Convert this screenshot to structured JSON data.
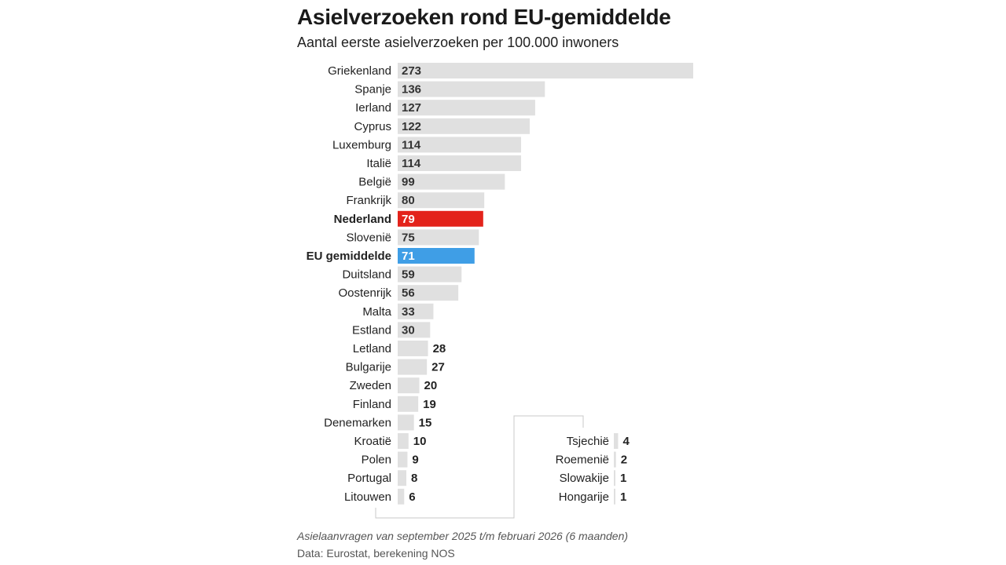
{
  "title": "Asielverzoeken rond EU-gemiddelde",
  "subtitle": "Aantal eerste asielverzoeken per 100.000 inwoners",
  "footnote": "Asielaanvragen van september 2025 t/m februari 2026 (6 maanden)",
  "source": "Data: Eurostat, berekening NOS",
  "colors": {
    "bar": "#e0e0e0",
    "highlight_netherlands": "#e3231b",
    "highlight_eu": "#3f9ee6",
    "label_inside": "#333333",
    "label_inside_highlight": "#ffffff",
    "connector": "#c8c8c8"
  },
  "chart_data": {
    "type": "bar",
    "orientation": "horizontal",
    "title": "Asielverzoeken rond EU-gemiddelde",
    "subtitle": "Aantal eerste asielverzoeken per 100.000 inwoners",
    "main": [
      {
        "label": "Griekenland",
        "value": 273
      },
      {
        "label": "Spanje",
        "value": 136
      },
      {
        "label": "Ierland",
        "value": 127
      },
      {
        "label": "Cyprus",
        "value": 122
      },
      {
        "label": "Luxemburg",
        "value": 114
      },
      {
        "label": "Italië",
        "value": 114
      },
      {
        "label": "België",
        "value": 99
      },
      {
        "label": "Frankrijk",
        "value": 80
      },
      {
        "label": "Nederland",
        "value": 79,
        "highlight": "netherlands"
      },
      {
        "label": "Slovenië",
        "value": 75
      },
      {
        "label": "EU gemiddelde",
        "value": 71,
        "highlight": "eu"
      },
      {
        "label": "Duitsland",
        "value": 59
      },
      {
        "label": "Oostenrijk",
        "value": 56
      },
      {
        "label": "Malta",
        "value": 33
      },
      {
        "label": "Estland",
        "value": 30
      },
      {
        "label": "Letland",
        "value": 28
      },
      {
        "label": "Bulgarije",
        "value": 27
      },
      {
        "label": "Zweden",
        "value": 20
      },
      {
        "label": "Finland",
        "value": 19
      },
      {
        "label": "Denemarken",
        "value": 15
      },
      {
        "label": "Kroatië",
        "value": 10
      },
      {
        "label": "Polen",
        "value": 9
      },
      {
        "label": "Portugal",
        "value": 8
      },
      {
        "label": "Litouwen",
        "value": 6
      }
    ],
    "continued": [
      {
        "label": "Tsjechië",
        "value": 4
      },
      {
        "label": "Roemenië",
        "value": 2
      },
      {
        "label": "Slowakije",
        "value": 1
      },
      {
        "label": "Hongarije",
        "value": 1
      }
    ]
  }
}
